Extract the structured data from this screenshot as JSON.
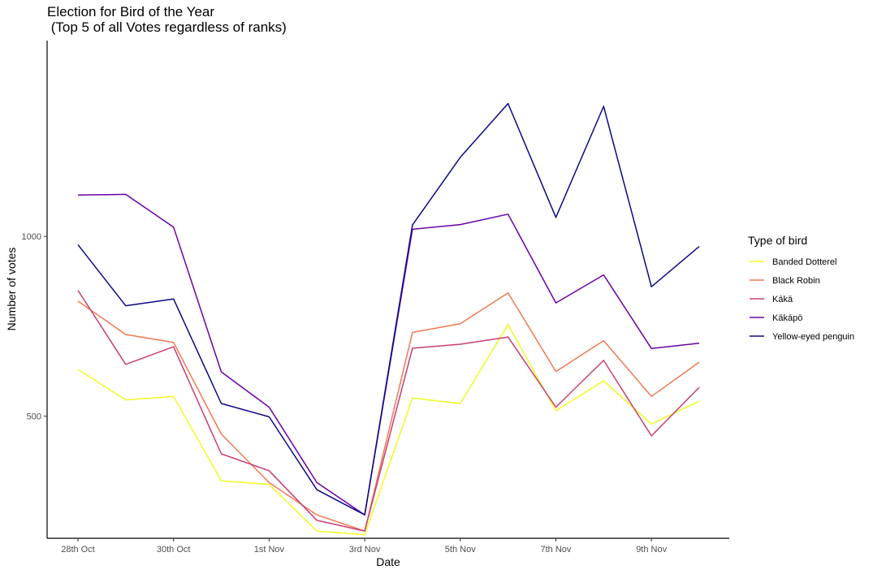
{
  "chart_data": {
    "type": "line",
    "title": "Election for Bird of the Year",
    "subtitle": " (Top 5 of all Votes regardless of ranks)",
    "xlabel": "Date",
    "ylabel": "Number of votes",
    "x": [
      "2019-10-28",
      "2019-10-29",
      "2019-10-30",
      "2019-10-31",
      "2019-11-01",
      "2019-11-02",
      "2019-11-03",
      "2019-11-04",
      "2019-11-05",
      "2019-11-06",
      "2019-11-07",
      "2019-11-08",
      "2019-11-09",
      "2019-11-10"
    ],
    "x_ticks": [
      {
        "value": "2019-10-28",
        "label": "28th Oct"
      },
      {
        "value": "2019-10-30",
        "label": "30th Oct"
      },
      {
        "value": "2019-11-01",
        "label": "1st Nov"
      },
      {
        "value": "2019-11-03",
        "label": "3rd Nov"
      },
      {
        "value": "2019-11-05",
        "label": "5th Nov"
      },
      {
        "value": "2019-11-07",
        "label": "7th Nov"
      },
      {
        "value": "2019-11-09",
        "label": "9th Nov"
      }
    ],
    "y_ticks": [
      500,
      1000
    ],
    "ylim": [
      160,
      1545
    ],
    "grid": false,
    "legend_title": "Type of bird",
    "legend_position": "right",
    "series": [
      {
        "name": "Banded Dotterel",
        "color": "#f0f921",
        "values": [
          630,
          545,
          555,
          320,
          310,
          180,
          170,
          550,
          535,
          755,
          515,
          598,
          478,
          542
        ]
      },
      {
        "name": "Black Robin",
        "color": "#ed7953",
        "values": [
          820,
          727,
          705,
          450,
          315,
          225,
          180,
          733,
          757,
          843,
          624,
          710,
          555,
          650
        ]
      },
      {
        "name": "Kākā",
        "color": "#c73e73",
        "values": [
          850,
          644,
          693,
          395,
          348,
          210,
          180,
          689,
          700,
          720,
          525,
          655,
          445,
          580
        ]
      },
      {
        "name": "Kākāpō",
        "color": "#6a00a8",
        "values": [
          1115,
          1117,
          1026,
          623,
          525,
          315,
          225,
          1020,
          1033,
          1062,
          815,
          893,
          688,
          703
        ]
      },
      {
        "name": "Yellow-eyed penguin",
        "color": "#0d0887",
        "values": [
          977,
          807,
          826,
          535,
          498,
          295,
          225,
          1032,
          1220,
          1370,
          1053,
          1362,
          860,
          972
        ]
      }
    ]
  }
}
